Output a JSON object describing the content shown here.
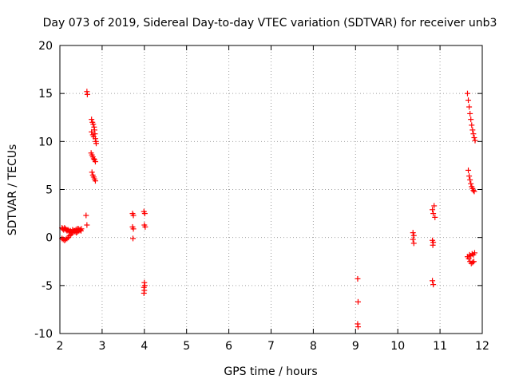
{
  "chart_data": {
    "type": "scatter",
    "title": "Day 073 of 2019, Sidereal Day-to-day VTEC variation (SDTVAR) for receiver unb3",
    "xlabel": "GPS time / hours",
    "ylabel": "SDTVAR / TECUs",
    "xlim": [
      2,
      12
    ],
    "ylim": [
      -10,
      20
    ],
    "xticks": [
      "2",
      "3",
      "4",
      "5",
      "6",
      "7",
      "8",
      "9",
      "10",
      "11",
      "12"
    ],
    "yticks": [
      "-10",
      "-5",
      "0",
      "5",
      "10",
      "15",
      "20"
    ],
    "grid": true,
    "marker": "+",
    "color": "#ff0000",
    "series": [
      {
        "name": "SDTVAR",
        "points": [
          [
            2.05,
            1.0
          ],
          [
            2.07,
            0.9
          ],
          [
            2.09,
            0.8
          ],
          [
            2.11,
            1.0
          ],
          [
            2.13,
            0.9
          ],
          [
            2.15,
            0.8
          ],
          [
            2.17,
            0.7
          ],
          [
            2.19,
            0.8
          ],
          [
            2.21,
            0.7
          ],
          [
            2.23,
            0.6
          ],
          [
            2.25,
            0.7
          ],
          [
            2.27,
            0.6
          ],
          [
            2.29,
            0.5
          ],
          [
            2.05,
            -0.1
          ],
          [
            2.08,
            -0.2
          ],
          [
            2.11,
            -0.3
          ],
          [
            2.14,
            -0.2
          ],
          [
            2.17,
            -0.1
          ],
          [
            2.2,
            0.0
          ],
          [
            2.23,
            0.2
          ],
          [
            2.26,
            0.3
          ],
          [
            2.29,
            0.5
          ],
          [
            2.32,
            0.6
          ],
          [
            2.35,
            0.7
          ],
          [
            2.38,
            0.8
          ],
          [
            2.41,
            0.9
          ],
          [
            2.44,
            0.9
          ],
          [
            2.47,
            0.8
          ],
          [
            2.5,
            0.7
          ],
          [
            2.3,
            0.8
          ],
          [
            2.33,
            0.7
          ],
          [
            2.36,
            0.6
          ],
          [
            2.39,
            0.5
          ],
          [
            2.42,
            0.6
          ],
          [
            2.45,
            0.7
          ],
          [
            2.48,
            0.8
          ],
          [
            2.51,
            0.9
          ],
          [
            2.62,
            2.3
          ],
          [
            2.64,
            1.3
          ],
          [
            2.64,
            15.2
          ],
          [
            2.65,
            14.9
          ],
          [
            2.75,
            12.3
          ],
          [
            2.77,
            12.0
          ],
          [
            2.79,
            11.8
          ],
          [
            2.81,
            11.5
          ],
          [
            2.82,
            11.2
          ],
          [
            2.83,
            10.8
          ],
          [
            2.84,
            10.3
          ],
          [
            2.85,
            10.0
          ],
          [
            2.86,
            9.8
          ],
          [
            2.75,
            11.0
          ],
          [
            2.78,
            10.7
          ],
          [
            2.8,
            10.5
          ],
          [
            2.74,
            8.8
          ],
          [
            2.76,
            8.6
          ],
          [
            2.78,
            8.4
          ],
          [
            2.8,
            8.2
          ],
          [
            2.82,
            8.1
          ],
          [
            2.84,
            7.9
          ],
          [
            2.76,
            6.8
          ],
          [
            2.78,
            6.5
          ],
          [
            2.8,
            6.3
          ],
          [
            2.82,
            6.1
          ],
          [
            2.84,
            5.9
          ],
          [
            3.72,
            2.5
          ],
          [
            3.74,
            2.3
          ],
          [
            3.72,
            1.1
          ],
          [
            3.74,
            0.9
          ],
          [
            3.73,
            -0.1
          ],
          [
            3.99,
            2.7
          ],
          [
            4.01,
            2.5
          ],
          [
            4.0,
            1.3
          ],
          [
            4.02,
            1.1
          ],
          [
            4.0,
            -4.7
          ],
          [
            4.01,
            -5.0
          ],
          [
            3.99,
            -5.2
          ],
          [
            4.0,
            -5.5
          ],
          [
            3.99,
            -5.8
          ],
          [
            9.05,
            -4.3
          ],
          [
            9.06,
            -6.7
          ],
          [
            9.05,
            -9.0
          ],
          [
            9.06,
            -9.3
          ],
          [
            10.36,
            0.5
          ],
          [
            10.38,
            0.2
          ],
          [
            10.36,
            -0.2
          ],
          [
            10.38,
            -0.6
          ],
          [
            10.82,
            2.9
          ],
          [
            10.84,
            2.5
          ],
          [
            10.86,
            3.3
          ],
          [
            10.88,
            2.1
          ],
          [
            10.82,
            -0.3
          ],
          [
            10.84,
            -0.5
          ],
          [
            10.83,
            -0.8
          ],
          [
            10.82,
            -4.5
          ],
          [
            10.84,
            -4.9
          ],
          [
            11.65,
            15.0
          ],
          [
            11.67,
            14.3
          ],
          [
            11.69,
            13.6
          ],
          [
            11.71,
            12.9
          ],
          [
            11.73,
            12.3
          ],
          [
            11.75,
            11.7
          ],
          [
            11.77,
            11.2
          ],
          [
            11.79,
            10.8
          ],
          [
            11.81,
            10.4
          ],
          [
            11.83,
            10.1
          ],
          [
            11.67,
            7.0
          ],
          [
            11.69,
            6.4
          ],
          [
            11.71,
            6.0
          ],
          [
            11.73,
            5.6
          ],
          [
            11.75,
            5.3
          ],
          [
            11.77,
            5.1
          ],
          [
            11.79,
            4.9
          ],
          [
            11.81,
            4.8
          ],
          [
            11.65,
            -2.0
          ],
          [
            11.68,
            -2.2
          ],
          [
            11.71,
            -2.5
          ],
          [
            11.74,
            -2.7
          ],
          [
            11.77,
            -2.6
          ],
          [
            11.8,
            -2.5
          ],
          [
            11.7,
            -1.8
          ],
          [
            11.73,
            -1.9
          ],
          [
            11.76,
            -1.7
          ],
          [
            11.79,
            -1.8
          ],
          [
            11.82,
            -1.6
          ]
        ]
      }
    ]
  }
}
